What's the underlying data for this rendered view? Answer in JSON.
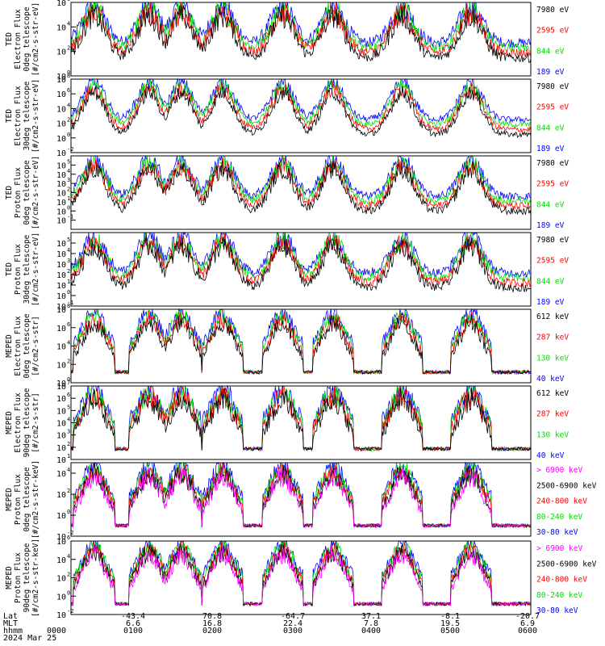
{
  "colors": {
    "black": "#000000",
    "blue": "#0000ff",
    "red": "#ff0000",
    "green": "#00e000",
    "magenta": "#ff00ff"
  },
  "footer": {
    "row_labels": [
      "Lat",
      "MLT",
      "hhmm"
    ],
    "date": "2024 Mar 25",
    "columns": [
      {
        "lat": "-43.4",
        "mlt": "6.6",
        "hhmm": "0100"
      },
      {
        "lat": "70.8",
        "mlt": "16.8",
        "hhmm": "0200"
      },
      {
        "lat": "-64.7",
        "mlt": "22.4",
        "hhmm": "0300"
      },
      {
        "lat": "37.1",
        "mlt": "7.8",
        "hhmm": "0400"
      },
      {
        "lat": "-8.1",
        "mlt": "19.5",
        "hhmm": "0500"
      },
      {
        "lat": "-20.7",
        "mlt": "6.9",
        "hhmm": "0600"
      }
    ],
    "start_hhmm": "0000"
  },
  "chart_data": [
    {
      "type": "line",
      "ylabel": [
        "TED",
        "Electron Flux",
        "0deg telescope",
        "[#/cm2-s-str-eV]"
      ],
      "ylim_log10": [
        0,
        6
      ],
      "yticks": [
        {
          "p": 0,
          "t": "10"
        },
        {
          "p": 2,
          "t": "10"
        },
        {
          "p": 4,
          "t": "10"
        },
        {
          "p": 6,
          "t": "10"
        }
      ],
      "legend": [
        {
          "name": "7980 eV",
          "color": "black"
        },
        {
          "name": "2595 eV",
          "color": "red"
        },
        {
          "name": "844 eV",
          "color": "green"
        },
        {
          "name": "189 eV",
          "color": "blue"
        }
      ]
    },
    {
      "type": "line",
      "ylabel": [
        "TED",
        "Electron Flux",
        "30deg telescope",
        "[#/cm2-s-str-eV]"
      ],
      "ylim_log10": [
        -2,
        8
      ],
      "yticks": [
        {
          "p": -2,
          "t": "10"
        },
        {
          "p": 0,
          "t": "10"
        },
        {
          "p": 2,
          "t": "10"
        },
        {
          "p": 4,
          "t": "10"
        },
        {
          "p": 6,
          "t": "10"
        },
        {
          "p": 8,
          "t": "10"
        }
      ],
      "legend": [
        {
          "name": "7980 eV",
          "color": "black"
        },
        {
          "name": "2595 eV",
          "color": "red"
        },
        {
          "name": "844 eV",
          "color": "green"
        },
        {
          "name": "189 eV",
          "color": "blue"
        }
      ]
    },
    {
      "type": "line",
      "ylabel": [
        "TED",
        "Proton Flux",
        "0deg telescope",
        "[#/cm2-s-str-eV]"
      ],
      "ylim_log10": [
        -2,
        6
      ],
      "yticks": [
        {
          "p": -1,
          "t": "10"
        },
        {
          "p": 0,
          "t": "10"
        },
        {
          "p": 1,
          "t": "10"
        },
        {
          "p": 2,
          "t": "10"
        },
        {
          "p": 3,
          "t": "10"
        },
        {
          "p": 4,
          "t": "10"
        },
        {
          "p": 5,
          "t": "10"
        }
      ],
      "legend": [
        {
          "name": "7980 eV",
          "color": "black"
        },
        {
          "name": "2595 eV",
          "color": "red"
        },
        {
          "name": "844 eV",
          "color": "green"
        },
        {
          "name": "189 eV",
          "color": "blue"
        }
      ]
    },
    {
      "type": "line",
      "ylabel": [
        "TED",
        "Proton Flux",
        "30deg telescope",
        "[#/cm2-s-str-eV]"
      ],
      "ylim_log10": [
        -1,
        6
      ],
      "yticks": [
        {
          "p": -1,
          "t": "10"
        },
        {
          "p": 0,
          "t": "10"
        },
        {
          "p": 1,
          "t": "10"
        },
        {
          "p": 2,
          "t": "10"
        },
        {
          "p": 3,
          "t": "10"
        },
        {
          "p": 4,
          "t": "10"
        },
        {
          "p": 5,
          "t": "10"
        }
      ],
      "legend": [
        {
          "name": "7980 eV",
          "color": "black"
        },
        {
          "name": "2595 eV",
          "color": "red"
        },
        {
          "name": "844 eV",
          "color": "green"
        },
        {
          "name": "189 eV",
          "color": "blue"
        }
      ]
    },
    {
      "type": "line",
      "ylabel": [
        "MEPED",
        "Electron Flux",
        "0deg telescope",
        "[#/cm2-s-str]"
      ],
      "ylim_log10": [
        0,
        8
      ],
      "yticks": [
        {
          "p": 0,
          "t": "10"
        },
        {
          "p": 2,
          "t": "10"
        },
        {
          "p": 4,
          "t": "10"
        },
        {
          "p": 6,
          "t": "10"
        },
        {
          "p": 8,
          "t": "10"
        }
      ],
      "legend": [
        {
          "name": "612 keV",
          "color": "black"
        },
        {
          "name": "287 keV",
          "color": "red"
        },
        {
          "name": "130 keV",
          "color": "green"
        },
        {
          "name": "40 keV",
          "color": "blue"
        }
      ]
    },
    {
      "type": "line",
      "ylabel": [
        "MEPED",
        "Electron Flux",
        "90deg telescope",
        "[#/cm2-s-str]"
      ],
      "ylim_log10": [
        1,
        7
      ],
      "yticks": [
        {
          "p": 1,
          "t": "10"
        },
        {
          "p": 2,
          "t": "10"
        },
        {
          "p": 3,
          "t": "10"
        },
        {
          "p": 4,
          "t": "10"
        },
        {
          "p": 5,
          "t": "10"
        },
        {
          "p": 6,
          "t": "10"
        },
        {
          "p": 7,
          "t": "10"
        }
      ],
      "legend": [
        {
          "name": "612 keV",
          "color": "black"
        },
        {
          "name": "287 keV",
          "color": "red"
        },
        {
          "name": "130 keV",
          "color": "green"
        },
        {
          "name": "40 keV",
          "color": "blue"
        }
      ]
    },
    {
      "type": "line",
      "ylabel": [
        "MEPED",
        "Proton Flux",
        "0deg telescope",
        "[#/cm2-s-str-keV]"
      ],
      "ylim_log10": [
        -2,
        5
      ],
      "yticks": [
        {
          "p": -2,
          "t": "10"
        },
        {
          "p": 0,
          "t": "10"
        },
        {
          "p": 2,
          "t": "10"
        },
        {
          "p": 4,
          "t": "10"
        }
      ],
      "legend": [
        {
          "name": "> 6900 keV",
          "color": "magenta"
        },
        {
          "name": "2500-6900 keV",
          "color": "black"
        },
        {
          "name": "240-800 keV",
          "color": "red"
        },
        {
          "name": "80-240 keV",
          "color": "green"
        },
        {
          "name": "30-80 keV",
          "color": "blue"
        }
      ]
    },
    {
      "type": "line",
      "ylabel": [
        "MEPED",
        "Proton Flux",
        "90deg telescope",
        "[#/cm2-s-str-keV]"
      ],
      "ylim_log10": [
        -2,
        6
      ],
      "yticks": [
        {
          "p": -2,
          "t": "10"
        },
        {
          "p": 0,
          "t": "10"
        },
        {
          "p": 2,
          "t": "10"
        },
        {
          "p": 4,
          "t": "10"
        },
        {
          "p": 6,
          "t": "10"
        }
      ],
      "legend": [
        {
          "name": "> 6900 keV",
          "color": "magenta"
        },
        {
          "name": "2500-6900 keV",
          "color": "black"
        },
        {
          "name": "240-800 keV",
          "color": "red"
        },
        {
          "name": "80-240 keV",
          "color": "green"
        },
        {
          "name": "30-80 keV",
          "color": "blue"
        }
      ]
    }
  ]
}
